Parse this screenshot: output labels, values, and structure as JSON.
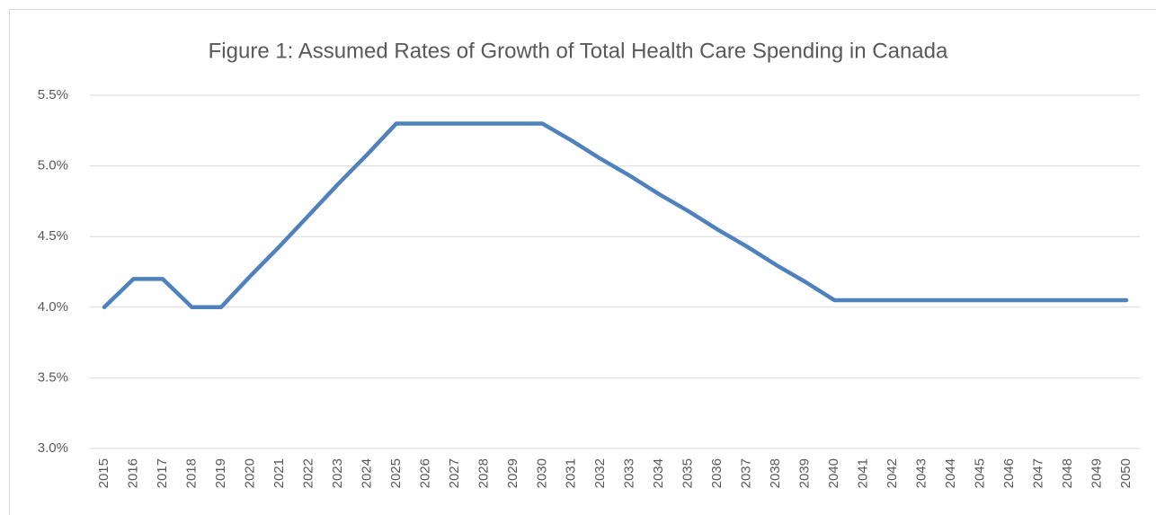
{
  "chart_data": {
    "type": "line",
    "title": "Figure 1: Assumed Rates of Growth of Total Health Care Spending in Canada",
    "x": [
      2015,
      2016,
      2017,
      2018,
      2019,
      2020,
      2021,
      2022,
      2023,
      2024,
      2025,
      2026,
      2027,
      2028,
      2029,
      2030,
      2031,
      2032,
      2033,
      2034,
      2035,
      2036,
      2037,
      2038,
      2039,
      2040,
      2041,
      2042,
      2043,
      2044,
      2045,
      2046,
      2047,
      2048,
      2049,
      2050
    ],
    "values": [
      4.0,
      4.2,
      4.2,
      4.0,
      4.0,
      4.22,
      4.43,
      4.65,
      4.87,
      5.08,
      5.3,
      5.3,
      5.3,
      5.3,
      5.3,
      5.3,
      5.18,
      5.05,
      4.93,
      4.8,
      4.68,
      4.55,
      4.43,
      4.3,
      4.18,
      4.05,
      4.05,
      4.05,
      4.05,
      4.05,
      4.05,
      4.05,
      4.05,
      4.05,
      4.05,
      4.05
    ],
    "color": "#4f81bd",
    "xlim": [
      2015,
      2050
    ],
    "ylim": [
      3.0,
      5.5
    ],
    "yticks": [
      {
        "value": 3.0,
        "label": "3.0%"
      },
      {
        "value": 3.5,
        "label": "3.5%"
      },
      {
        "value": 4.0,
        "label": "4.0%"
      },
      {
        "value": 4.5,
        "label": "4.5%"
      },
      {
        "value": 5.0,
        "label": "5.0%"
      },
      {
        "value": 5.5,
        "label": "5.5%"
      }
    ],
    "grid": true
  }
}
